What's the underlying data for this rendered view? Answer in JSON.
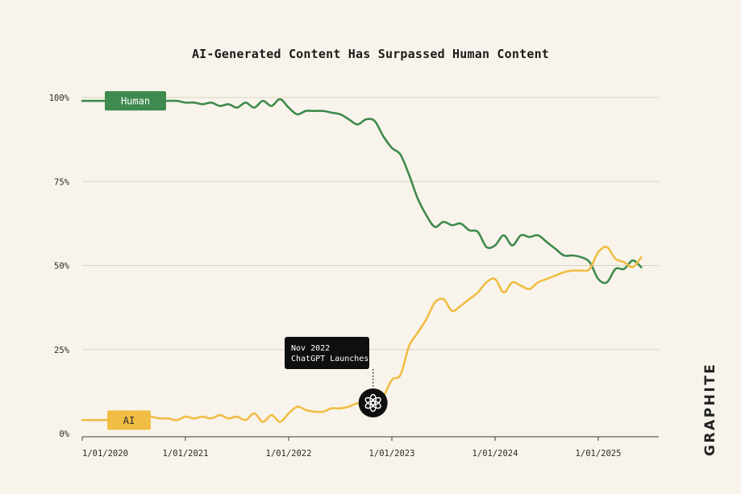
{
  "brand": "GRAPHITE",
  "colors": {
    "background": "#f9f4eb",
    "human": "#3f8a4e",
    "ai": "#f0bd45",
    "grid": "#d9d3c4",
    "annotation_bg": "#0f0f0f"
  },
  "annotation": {
    "line1": "Nov 2022",
    "line2": "ChatGPT Launches",
    "x": "2022-11",
    "icon": "openai-logo-icon"
  },
  "chart_data": {
    "type": "line",
    "title": "AI-Generated Content Has Surpassed Human Content",
    "xlabel": "",
    "ylabel": "",
    "ylim": [
      0,
      100
    ],
    "grid": true,
    "legend": "inline labels at line start",
    "x_ticks": [
      "1/01/2020",
      "1/01/2021",
      "1/01/2022",
      "1/01/2023",
      "1/01/2024",
      "1/01/2025"
    ],
    "y_ticks": [
      "0%",
      "25%",
      "50%",
      "75%",
      "100%"
    ],
    "x": [
      "2020-01",
      "2020-02",
      "2020-03",
      "2020-04",
      "2020-05",
      "2020-06",
      "2020-07",
      "2020-08",
      "2020-09",
      "2020-10",
      "2020-11",
      "2020-12",
      "2021-01",
      "2021-02",
      "2021-03",
      "2021-04",
      "2021-05",
      "2021-06",
      "2021-07",
      "2021-08",
      "2021-09",
      "2021-10",
      "2021-11",
      "2021-12",
      "2022-01",
      "2022-02",
      "2022-03",
      "2022-04",
      "2022-05",
      "2022-06",
      "2022-07",
      "2022-08",
      "2022-09",
      "2022-10",
      "2022-11",
      "2022-12",
      "2023-01",
      "2023-02",
      "2023-03",
      "2023-04",
      "2023-05",
      "2023-06",
      "2023-07",
      "2023-08",
      "2023-09",
      "2023-10",
      "2023-11",
      "2023-12",
      "2024-01",
      "2024-02",
      "2024-03",
      "2024-04",
      "2024-05",
      "2024-06",
      "2024-07",
      "2024-08",
      "2024-09",
      "2024-10",
      "2024-11",
      "2024-12",
      "2025-01",
      "2025-02",
      "2025-03",
      "2025-04",
      "2025-05",
      "2025-06"
    ],
    "series": [
      {
        "name": "Human",
        "color": "#3f8a4e",
        "values": [
          99,
          99,
          99,
          99,
          99,
          99,
          99,
          99,
          99,
          99,
          99,
          99,
          98.5,
          98.5,
          98,
          98.5,
          97.5,
          98,
          97,
          98.5,
          97,
          99,
          97.5,
          99.5,
          97,
          95,
          96,
          96,
          96,
          95.5,
          95,
          93.5,
          92,
          93.5,
          93,
          88.5,
          85,
          83,
          77,
          70,
          65,
          61.5,
          63,
          62,
          62.5,
          60.5,
          60,
          55.5,
          56,
          59,
          56,
          59,
          58.5,
          59,
          57,
          55,
          53,
          53,
          52.5,
          51,
          46,
          45,
          49,
          49,
          51.5,
          49.5
        ]
      },
      {
        "name": "AI",
        "color": "#f0bd45",
        "values": [
          4,
          4,
          4,
          4,
          4,
          4,
          5,
          5,
          5,
          4.5,
          4.5,
          4,
          5,
          4.5,
          5,
          4.5,
          5.5,
          4.5,
          5,
          4,
          6,
          3.5,
          5.5,
          3.5,
          6,
          8,
          7,
          6.5,
          6.5,
          7.5,
          7.5,
          8,
          9,
          8,
          8.5,
          11,
          16,
          17.5,
          26,
          30,
          34,
          39,
          40,
          36.5,
          38,
          40,
          42,
          45,
          46,
          42,
          45,
          44,
          43,
          45,
          46,
          47,
          48,
          48.5,
          48.5,
          49,
          54,
          55.5,
          52,
          51,
          49.5,
          52.5
        ]
      }
    ]
  }
}
